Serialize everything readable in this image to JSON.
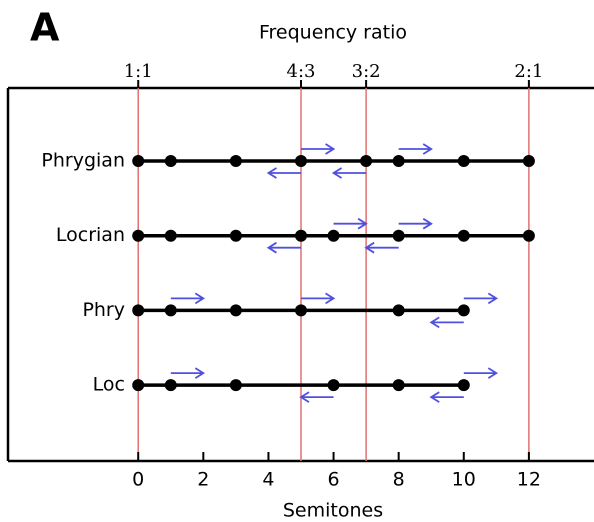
{
  "chart_data": {
    "type": "dot",
    "panel_label": "A",
    "top_axis_label": "Frequency ratio",
    "xlabel": "Semitones",
    "xlim": [
      -4,
      14
    ],
    "xticks": [
      0,
      2,
      4,
      6,
      8,
      10,
      12
    ],
    "top_ticks": [
      {
        "value": 0,
        "label": "1:1"
      },
      {
        "value": 5,
        "label": "4:3"
      },
      {
        "value": 7,
        "label": "3:2"
      },
      {
        "value": 12,
        "label": "2:1"
      }
    ],
    "grid_color": "#e07070",
    "line_color": "#000000",
    "arrow_color": "#5050e0",
    "series": [
      {
        "name": "Phrygian",
        "values": [
          0,
          1,
          3,
          5,
          7,
          8,
          10,
          12
        ],
        "shifts": [
          {
            "from": 5,
            "to": 6
          },
          {
            "from": 8,
            "to": 9
          },
          {
            "from": 5,
            "to": 4
          },
          {
            "from": 7,
            "to": 6
          }
        ]
      },
      {
        "name": "Locrian",
        "values": [
          0,
          1,
          3,
          5,
          6,
          8,
          10,
          12
        ],
        "shifts": [
          {
            "from": 6,
            "to": 7
          },
          {
            "from": 8,
            "to": 9
          },
          {
            "from": 5,
            "to": 4
          },
          {
            "from": 8,
            "to": 7
          }
        ]
      },
      {
        "name": "Phry",
        "values": [
          0,
          1,
          3,
          5,
          8,
          10
        ],
        "shifts": [
          {
            "from": 1,
            "to": 2
          },
          {
            "from": 5,
            "to": 6
          },
          {
            "from": 10,
            "to": 11
          },
          {
            "from": 10,
            "to": 9
          }
        ]
      },
      {
        "name": "Loc",
        "values": [
          0,
          1,
          3,
          6,
          8,
          10
        ],
        "shifts": [
          {
            "from": 1,
            "to": 2
          },
          {
            "from": 10,
            "to": 11
          },
          {
            "from": 6,
            "to": 5
          },
          {
            "from": 10,
            "to": 9
          }
        ]
      }
    ]
  }
}
